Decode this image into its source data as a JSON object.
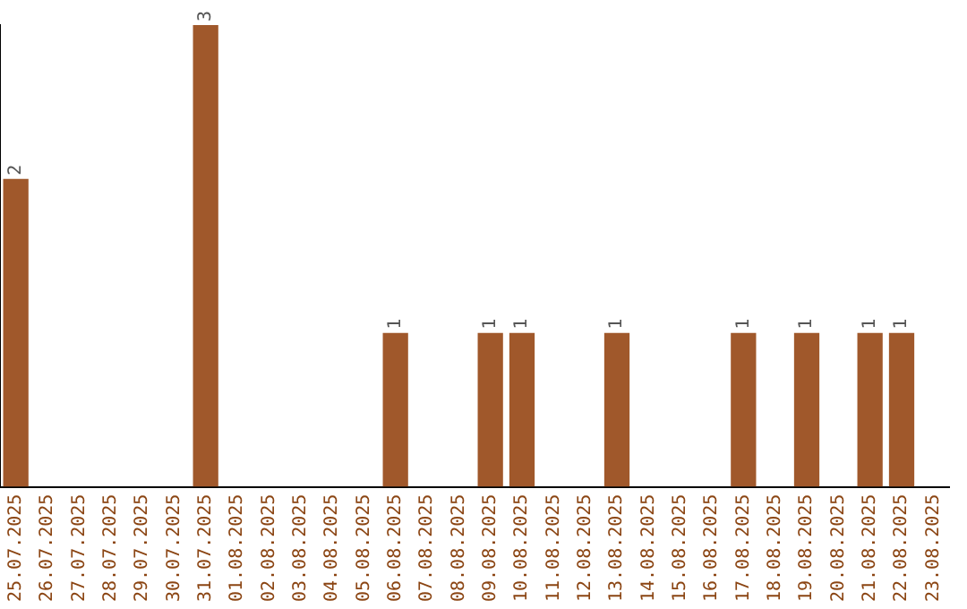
{
  "chart_data": {
    "type": "bar",
    "categories": [
      "25.07.2025",
      "26.07.2025",
      "27.07.2025",
      "28.07.2025",
      "29.07.2025",
      "30.07.2025",
      "31.07.2025",
      "01.08.2025",
      "02.08.2025",
      "03.08.2025",
      "04.08.2025",
      "05.08.2025",
      "06.08.2025",
      "07.08.2025",
      "08.08.2025",
      "09.08.2025",
      "10.08.2025",
      "11.08.2025",
      "12.08.2025",
      "13.08.2025",
      "14.08.2025",
      "15.08.2025",
      "16.08.2025",
      "17.08.2025",
      "18.08.2025",
      "19.08.2025",
      "20.08.2025",
      "21.08.2025",
      "22.08.2025",
      "23.08.2025"
    ],
    "values": [
      2,
      null,
      null,
      null,
      null,
      null,
      3,
      null,
      null,
      null,
      null,
      null,
      1,
      null,
      null,
      1,
      1,
      null,
      null,
      1,
      null,
      null,
      null,
      1,
      null,
      1,
      null,
      1,
      1,
      null
    ],
    "color": "#a0582b",
    "data_labels": true,
    "grid": false,
    "legend": false,
    "tick_labels": "x"
  }
}
